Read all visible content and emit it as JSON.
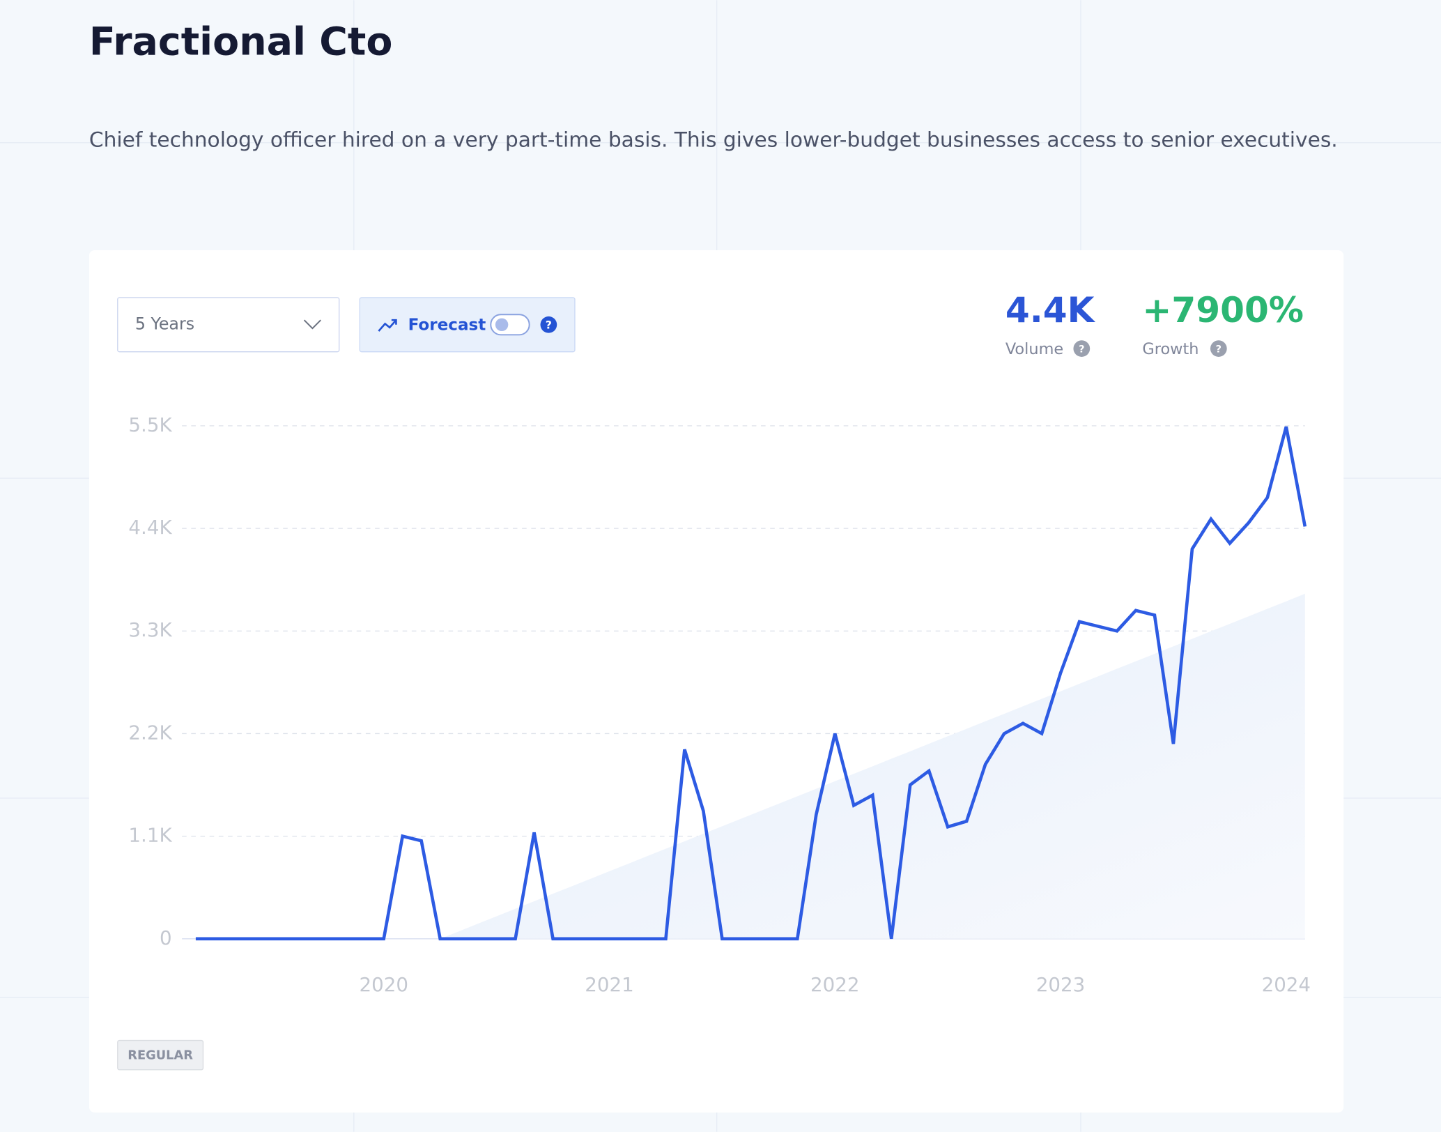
{
  "header": {
    "title": "Fractional Cto",
    "description": "Chief technology officer hired on a very part-time basis. This gives lower-budget businesses access to senior executives."
  },
  "controls": {
    "range": "5 Years",
    "forecast": "Forecast",
    "forecast_help": "?"
  },
  "stats": [
    {
      "value": "4.4K",
      "label": "Volume",
      "help": "?"
    },
    {
      "value": "+7900%",
      "label": "Growth",
      "help": "?"
    }
  ],
  "badge": "REGULAR",
  "chart_data": {
    "type": "line",
    "categories": [
      null,
      null,
      null,
      null,
      null,
      null,
      null,
      null,
      null,
      null,
      "2020",
      null,
      null,
      null,
      null,
      null,
      null,
      null,
      null,
      null,
      null,
      null,
      "2021",
      null,
      null,
      null,
      null,
      null,
      null,
      null,
      null,
      null,
      null,
      null,
      "2022",
      null,
      null,
      null,
      null,
      null,
      null,
      null,
      null,
      null,
      null,
      null,
      "2023",
      null,
      null,
      null,
      null,
      null,
      null,
      null,
      null,
      null,
      null,
      null,
      "2024",
      null
    ],
    "series": [
      {
        "name": "Volume",
        "color": "#2d5be3",
        "values": [
          0,
          0,
          0,
          0,
          0,
          0,
          0,
          0,
          0,
          0,
          0,
          1100,
          1050,
          0,
          0,
          0,
          0,
          0,
          1140,
          0,
          0,
          0,
          0,
          0,
          0,
          0,
          2030,
          1370,
          0,
          0,
          0,
          0,
          0,
          1330,
          2200,
          1430,
          1540,
          0,
          1650,
          1800,
          1200,
          1260,
          1870,
          2200,
          2310,
          2200,
          2850,
          3400,
          3350,
          3300,
          3520,
          3470,
          2090,
          4180,
          4500,
          4240,
          4460,
          4730,
          5490,
          4420
        ]
      }
    ],
    "trend_values": [
      null,
      null,
      null,
      null,
      null,
      null,
      null,
      null,
      null,
      null,
      null,
      null,
      null,
      0,
      80,
      161,
      241,
      322,
      402,
      483,
      563,
      643,
      724,
      804,
      885,
      965,
      1045,
      1126,
      1206,
      1287,
      1367,
      1447,
      1528,
      1608,
      1689,
      1769,
      1849,
      1930,
      2010,
      2091,
      2171,
      2251,
      2332,
      2412,
      2493,
      2573,
      2653,
      2734,
      2814,
      2895,
      2975,
      3055,
      3136,
      3216,
      3297,
      3377,
      3457,
      3538,
      3618,
      3700
    ],
    "trend_color": "#e6eefb",
    "ylim": [
      0,
      5500
    ],
    "yticks": [
      0,
      {
        "value": 1100,
        "label": "1.1K"
      },
      {
        "value": 2200,
        "label": "2.2K"
      },
      {
        "value": 3300,
        "label": "3.3K"
      },
      {
        "value": 4400,
        "label": "4.4K"
      },
      {
        "value": 5500,
        "label": "5.5K"
      }
    ],
    "grid": true
  }
}
